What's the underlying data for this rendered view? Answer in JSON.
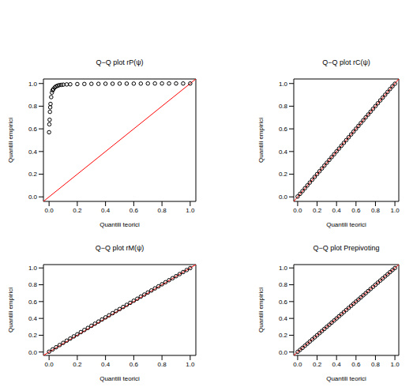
{
  "chart_data": [
    {
      "type": "scatter",
      "title": "Q−Q plot rP(ψ)",
      "x_label": "Quantili teorici",
      "y_label": "Quantili empirici",
      "color": "#000000",
      "marker": "circle",
      "x": [
        0,
        0.002,
        0.004,
        0.006,
        0.008,
        0.01,
        0.015,
        0.02,
        0.025,
        0.03,
        0.04,
        0.05,
        0.06,
        0.07,
        0.085,
        0.1,
        0.125,
        0.15,
        0.2,
        0.25,
        0.3,
        0.35,
        0.4,
        0.45,
        0.5,
        0.55,
        0.6,
        0.65,
        0.7,
        0.75,
        0.8,
        0.85,
        0.9,
        0.95,
        1.0
      ],
      "values": [
        0.57,
        0.64,
        0.68,
        0.75,
        0.79,
        0.82,
        0.88,
        0.92,
        0.94,
        0.95,
        0.965,
        0.975,
        0.98,
        0.985,
        0.988,
        0.99,
        0.992,
        0.993,
        0.995,
        0.996,
        0.997,
        0.997,
        0.998,
        0.998,
        0.999,
        0.999,
        0.999,
        0.999,
        1.0,
        1.0,
        1.0,
        1.0,
        1.0,
        1.0,
        1.0
      ],
      "xlim": [
        -0.04,
        1.04
      ],
      "ylim": [
        -0.04,
        1.04
      ],
      "xticks": [
        {
          "value": 0,
          "label": "0.0"
        },
        {
          "value": 0.2,
          "label": "0.2"
        },
        {
          "value": 0.4,
          "label": "0.4"
        },
        {
          "value": 0.6,
          "label": "0.6"
        },
        {
          "value": 0.8,
          "label": "0.8"
        },
        {
          "value": 1,
          "label": "1.0"
        }
      ],
      "yticks": [
        {
          "value": 0,
          "label": "0.0"
        },
        {
          "value": 0.2,
          "label": "0.2"
        },
        {
          "value": 0.4,
          "label": "0.4"
        },
        {
          "value": 0.6,
          "label": "0.6"
        },
        {
          "value": 0.8,
          "label": "0.8"
        },
        {
          "value": 1,
          "label": "1.0"
        }
      ],
      "reference_line": {
        "x": [
          -0.04,
          1.04
        ],
        "values": [
          -0.04,
          1.04
        ],
        "color": "#ff0000"
      }
    },
    {
      "type": "scatter",
      "title": "Q−Q plot rC(ψ)",
      "x_label": "Quantili teorici",
      "y_label": "Quantili empirici",
      "color": "#000000",
      "marker": "circle",
      "x": [
        0.0,
        0.025,
        0.05,
        0.075,
        0.1,
        0.125,
        0.15,
        0.175,
        0.2,
        0.225,
        0.25,
        0.275,
        0.3,
        0.325,
        0.35,
        0.375,
        0.4,
        0.425,
        0.45,
        0.475,
        0.5,
        0.525,
        0.55,
        0.575,
        0.6,
        0.625,
        0.65,
        0.675,
        0.7,
        0.725,
        0.75,
        0.775,
        0.8,
        0.825,
        0.85,
        0.875,
        0.9,
        0.925,
        0.95,
        0.975,
        1.0
      ],
      "values": [
        0.003,
        0.027,
        0.051,
        0.076,
        0.101,
        0.126,
        0.151,
        0.176,
        0.201,
        0.226,
        0.251,
        0.276,
        0.301,
        0.326,
        0.351,
        0.376,
        0.401,
        0.426,
        0.451,
        0.476,
        0.501,
        0.526,
        0.551,
        0.576,
        0.601,
        0.626,
        0.651,
        0.676,
        0.701,
        0.726,
        0.751,
        0.776,
        0.801,
        0.826,
        0.851,
        0.876,
        0.901,
        0.926,
        0.951,
        0.976,
        0.998
      ],
      "xlim": [
        -0.04,
        1.04
      ],
      "ylim": [
        -0.04,
        1.04
      ],
      "xticks": [
        {
          "value": 0,
          "label": "0.0"
        },
        {
          "value": 0.2,
          "label": "0.2"
        },
        {
          "value": 0.4,
          "label": "0.4"
        },
        {
          "value": 0.6,
          "label": "0.6"
        },
        {
          "value": 0.8,
          "label": "0.8"
        },
        {
          "value": 1,
          "label": "1.0"
        }
      ],
      "yticks": [
        {
          "value": 0,
          "label": "0.0"
        },
        {
          "value": 0.2,
          "label": "0.2"
        },
        {
          "value": 0.4,
          "label": "0.4"
        },
        {
          "value": 0.6,
          "label": "0.6"
        },
        {
          "value": 0.8,
          "label": "0.8"
        },
        {
          "value": 1,
          "label": "1.0"
        }
      ],
      "reference_line": {
        "x": [
          -0.04,
          1.04
        ],
        "values": [
          -0.04,
          1.04
        ],
        "color": "#ff0000"
      }
    },
    {
      "type": "scatter",
      "title": "Q−Q plot rM(ψ)",
      "x_label": "Quantili teorici",
      "y_label": "Quantili empirici",
      "color": "#000000",
      "marker": "circle",
      "x": [
        0.0,
        0.025,
        0.05,
        0.075,
        0.1,
        0.125,
        0.15,
        0.175,
        0.2,
        0.225,
        0.25,
        0.275,
        0.3,
        0.325,
        0.35,
        0.375,
        0.4,
        0.425,
        0.45,
        0.475,
        0.5,
        0.525,
        0.55,
        0.575,
        0.6,
        0.625,
        0.65,
        0.675,
        0.7,
        0.725,
        0.75,
        0.775,
        0.8,
        0.825,
        0.85,
        0.875,
        0.9,
        0.925,
        0.95,
        0.975,
        1.0
      ],
      "values": [
        0.004,
        0.031,
        0.057,
        0.083,
        0.109,
        0.135,
        0.16,
        0.186,
        0.211,
        0.237,
        0.262,
        0.287,
        0.312,
        0.337,
        0.362,
        0.387,
        0.412,
        0.437,
        0.462,
        0.487,
        0.511,
        0.536,
        0.561,
        0.585,
        0.61,
        0.634,
        0.659,
        0.683,
        0.708,
        0.732,
        0.757,
        0.781,
        0.806,
        0.83,
        0.854,
        0.878,
        0.902,
        0.927,
        0.951,
        0.975,
        0.998
      ],
      "xlim": [
        -0.04,
        1.04
      ],
      "ylim": [
        -0.04,
        1.04
      ],
      "xticks": [
        {
          "value": 0,
          "label": "0.0"
        },
        {
          "value": 0.2,
          "label": "0.2"
        },
        {
          "value": 0.4,
          "label": "0.4"
        },
        {
          "value": 0.6,
          "label": "0.6"
        },
        {
          "value": 0.8,
          "label": "0.8"
        },
        {
          "value": 1,
          "label": "1.0"
        }
      ],
      "yticks": [
        {
          "value": 0,
          "label": "0.0"
        },
        {
          "value": 0.2,
          "label": "0.2"
        },
        {
          "value": 0.4,
          "label": "0.4"
        },
        {
          "value": 0.6,
          "label": "0.6"
        },
        {
          "value": 0.8,
          "label": "0.8"
        },
        {
          "value": 1,
          "label": "1.0"
        }
      ],
      "reference_line": {
        "x": [
          -0.04,
          1.04
        ],
        "values": [
          -0.04,
          1.04
        ],
        "color": "#ff0000"
      }
    },
    {
      "type": "scatter",
      "title": "Q−Q plot Prepivoting",
      "x_label": "Quantili teorici",
      "y_label": "Quantili empirici",
      "color": "#000000",
      "marker": "circle",
      "x": [
        0.0,
        0.025,
        0.05,
        0.075,
        0.1,
        0.125,
        0.15,
        0.175,
        0.2,
        0.225,
        0.25,
        0.275,
        0.3,
        0.325,
        0.35,
        0.375,
        0.4,
        0.425,
        0.45,
        0.475,
        0.5,
        0.525,
        0.55,
        0.575,
        0.6,
        0.625,
        0.65,
        0.675,
        0.7,
        0.725,
        0.75,
        0.775,
        0.8,
        0.825,
        0.85,
        0.875,
        0.9,
        0.925,
        0.95,
        0.975,
        1.0
      ],
      "values": [
        0.002,
        0.026,
        0.05,
        0.075,
        0.1,
        0.125,
        0.15,
        0.175,
        0.2,
        0.225,
        0.25,
        0.275,
        0.3,
        0.325,
        0.35,
        0.375,
        0.4,
        0.425,
        0.45,
        0.475,
        0.5,
        0.525,
        0.55,
        0.575,
        0.6,
        0.625,
        0.65,
        0.675,
        0.7,
        0.725,
        0.75,
        0.775,
        0.8,
        0.825,
        0.85,
        0.875,
        0.9,
        0.925,
        0.95,
        0.975,
        0.999
      ],
      "xlim": [
        -0.04,
        1.04
      ],
      "ylim": [
        -0.04,
        1.04
      ],
      "xticks": [
        {
          "value": 0,
          "label": "0.0"
        },
        {
          "value": 0.2,
          "label": "0.2"
        },
        {
          "value": 0.4,
          "label": "0.4"
        },
        {
          "value": 0.6,
          "label": "0.6"
        },
        {
          "value": 0.8,
          "label": "0.8"
        },
        {
          "value": 1,
          "label": "1.0"
        }
      ],
      "yticks": [
        {
          "value": 0,
          "label": "0.0"
        },
        {
          "value": 0.2,
          "label": "0.2"
        },
        {
          "value": 0.4,
          "label": "0.4"
        },
        {
          "value": 0.6,
          "label": "0.6"
        },
        {
          "value": 0.8,
          "label": "0.8"
        },
        {
          "value": 1,
          "label": "1.0"
        }
      ],
      "reference_line": {
        "x": [
          -0.04,
          1.04
        ],
        "values": [
          -0.04,
          1.04
        ],
        "color": "#ff0000"
      }
    }
  ]
}
